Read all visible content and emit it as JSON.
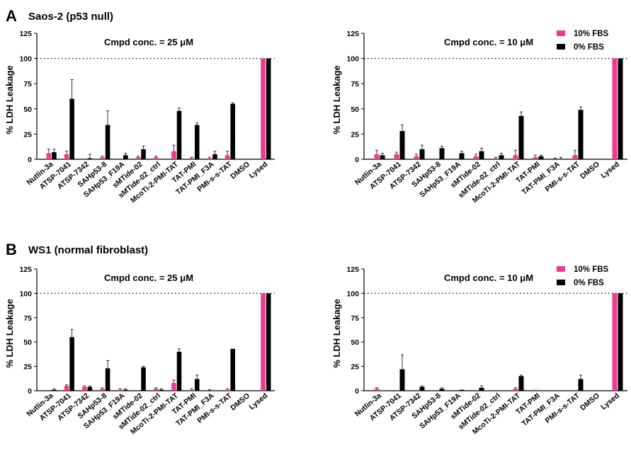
{
  "sections": [
    {
      "letter": "A",
      "title": "Saos-2 (p53 null)"
    },
    {
      "letter": "B",
      "title": "WS1 (normal fibroblast)"
    }
  ],
  "colors": {
    "fbs10": "#f0388f",
    "fbs0": "#000000",
    "axis": "#000000"
  },
  "chart_data": [
    {
      "type": "bar",
      "section": "A",
      "title": "Cmpd conc. = 25 μM",
      "xlabel": "",
      "ylabel": "% LDH Leakage",
      "ylim": [
        0,
        125
      ],
      "yticks": [
        0,
        25,
        50,
        75,
        100,
        125
      ],
      "reference_line": 100,
      "legend": null,
      "categories": [
        "Nutlin-3a",
        "ATSP-7041",
        "ATSP-7342",
        "SAHp53-8",
        "SAHp53_F19A",
        "sMTide-02",
        "sMTide-02_ctrl",
        "McoTi-2-PMI-TAT",
        "TAT-PMI",
        "TAT-PMI_F3A",
        "PMI-s-s-TAT",
        "DMSO",
        "Lysed"
      ],
      "series": [
        {
          "name": "10% FBS",
          "color": "#f0388f",
          "values": [
            6,
            5,
            0,
            2,
            0,
            2,
            2,
            8,
            1,
            1,
            4,
            0,
            100
          ],
          "errors": [
            4,
            3,
            0,
            1,
            0,
            1,
            1,
            6,
            1,
            1,
            4,
            0,
            0
          ]
        },
        {
          "name": "0% FBS",
          "color": "#000000",
          "values": [
            7,
            60,
            1,
            34,
            4,
            10,
            0,
            48,
            34,
            5,
            55,
            0,
            100
          ],
          "errors": [
            3,
            19,
            4,
            14,
            2,
            3,
            0,
            3,
            2,
            3,
            1,
            0,
            0
          ]
        }
      ]
    },
    {
      "type": "bar",
      "section": "A",
      "title": "Cmpd conc. = 10 μM",
      "xlabel": "",
      "ylabel": "% LDH Leakage",
      "ylim": [
        0,
        125
      ],
      "yticks": [
        0,
        25,
        50,
        75,
        100,
        125
      ],
      "reference_line": 100,
      "legend": {
        "placement": "top-right",
        "entries": [
          "10% FBS",
          "0% FBS"
        ]
      },
      "categories": [
        "Nutlin-3a",
        "ATSP-7041",
        "ATSP-7342",
        "SAHp53-8",
        "SAHp53_F19A",
        "sMTide-02",
        "sMTide-02_ctrl",
        "McoTi-2-PMI-TAT",
        "TAT-PMI",
        "TAT-PMI_F3A",
        "PMI-s-s-TAT",
        "DMSO",
        "Lysed"
      ],
      "series": [
        {
          "name": "10% FBS",
          "color": "#f0388f",
          "values": [
            5,
            5,
            3,
            0,
            0,
            3,
            1,
            4,
            2,
            0,
            4,
            0,
            100
          ],
          "errors": [
            4,
            2,
            2,
            0,
            0,
            2,
            1,
            5,
            2,
            1,
            5,
            0,
            0
          ]
        },
        {
          "name": "0% FBS",
          "color": "#000000",
          "values": [
            4,
            28,
            10,
            11,
            6,
            8,
            4,
            43,
            3,
            0,
            49,
            0,
            100
          ],
          "errors": [
            2,
            6,
            4,
            2,
            2,
            3,
            2,
            4,
            1,
            2,
            3,
            0,
            0
          ]
        }
      ]
    },
    {
      "type": "bar",
      "section": "B",
      "title": "Cmpd conc. = 25 μM",
      "xlabel": "",
      "ylabel": "% LDH Leakage",
      "ylim": [
        0,
        125
      ],
      "yticks": [
        0,
        25,
        50,
        75,
        100,
        125
      ],
      "reference_line": 100,
      "legend": null,
      "categories": [
        "Nutlin-3a",
        "ATSP-7041",
        "ATSP-7342",
        "SAHp53-8",
        "SAHp53_F19A",
        "sMTide-02",
        "sMTide-02_ctrl",
        "McoTi-2-PMI-TAT",
        "TAT-PMI",
        "TAT-PMI_F3A",
        "PMI-s-s-TAT",
        "DMSO",
        "Lysed"
      ],
      "series": [
        {
          "name": "10% FBS",
          "color": "#f0388f",
          "values": [
            0,
            5,
            4,
            2,
            1,
            0,
            2,
            8,
            1,
            0,
            1,
            0,
            100
          ],
          "errors": [
            0,
            1,
            1,
            1,
            1,
            0,
            1,
            3,
            1,
            1,
            1,
            0,
            0
          ]
        },
        {
          "name": "0% FBS",
          "color": "#000000",
          "values": [
            1,
            55,
            4,
            23,
            1,
            24,
            1,
            40,
            12,
            0,
            43,
            0,
            100
          ],
          "errors": [
            1,
            8,
            1,
            8,
            1,
            1,
            1,
            3,
            4,
            0,
            0,
            0,
            0
          ]
        }
      ]
    },
    {
      "type": "bar",
      "section": "B",
      "title": "Cmpd conc. = 10 μM",
      "xlabel": "",
      "ylabel": "% LDH Leakage",
      "ylim": [
        0,
        125
      ],
      "yticks": [
        0,
        25,
        50,
        75,
        100,
        125
      ],
      "reference_line": 100,
      "legend": {
        "placement": "top-right",
        "entries": [
          "10% FBS",
          "0% FBS"
        ]
      },
      "categories": [
        "Nutlin-3a",
        "ATSP-7041",
        "ATSP-7342",
        "SAHp53-8",
        "SAHp53_F19A",
        "sMTide-02",
        "sMTide-02_ctrl",
        "McoTi-2-PMI-TAT",
        "TAT-PMI",
        "TAT-PMI_F3A",
        "PMI-s-s-TAT",
        "DMSO",
        "Lysed"
      ],
      "series": [
        {
          "name": "10% FBS",
          "color": "#f0388f",
          "values": [
            2,
            0,
            0,
            0,
            0,
            0,
            0,
            2,
            1,
            0,
            0,
            0,
            100
          ],
          "errors": [
            1,
            0,
            0,
            0,
            0,
            0,
            0,
            1,
            0,
            0,
            0,
            0,
            0
          ]
        },
        {
          "name": "0% FBS",
          "color": "#000000",
          "values": [
            0,
            22,
            4,
            2,
            1,
            3,
            0,
            15,
            0,
            0,
            12,
            0,
            100
          ],
          "errors": [
            0,
            15,
            1,
            1,
            0,
            2,
            0,
            1,
            0,
            0,
            4,
            0,
            0
          ]
        }
      ]
    }
  ]
}
